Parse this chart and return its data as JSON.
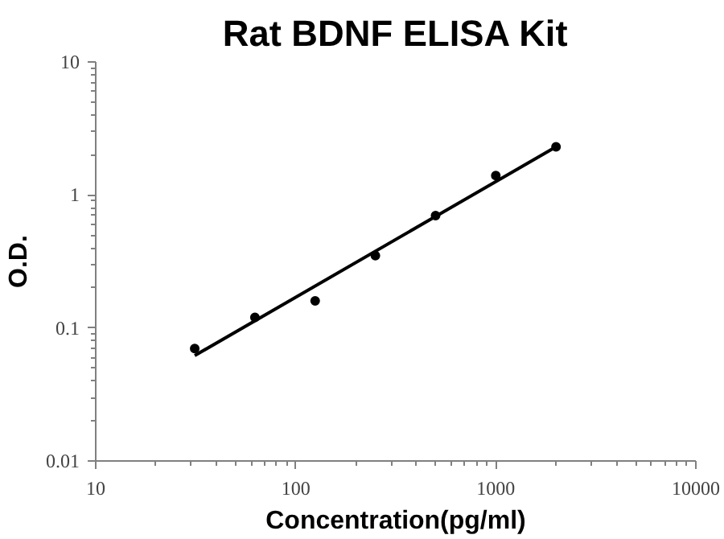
{
  "chart_data": {
    "type": "scatter",
    "title": "Rat BDNF ELISA Kit",
    "xlabel": "Concentration(pg/ml)",
    "ylabel": "O.D.",
    "log": "xy",
    "grid": false,
    "series": [
      {
        "marker": "circle",
        "color": "#000000",
        "x": [
          31.25,
          62.5,
          125,
          250,
          500,
          1000,
          2000
        ],
        "values": [
          0.07,
          0.12,
          0.16,
          0.35,
          0.7,
          1.4,
          2.3
        ]
      },
      {
        "type": "line",
        "marker": "none",
        "color": "#000000",
        "x": [
          31.25,
          2000
        ],
        "values": [
          0.062,
          2.3
        ]
      }
    ],
    "xlim": [
      10,
      10000
    ],
    "ylim": [
      0.01,
      10
    ],
    "xticks": [
      10,
      100,
      1000,
      10000
    ],
    "yticks": [
      0.01,
      0.1,
      1,
      10
    ]
  }
}
